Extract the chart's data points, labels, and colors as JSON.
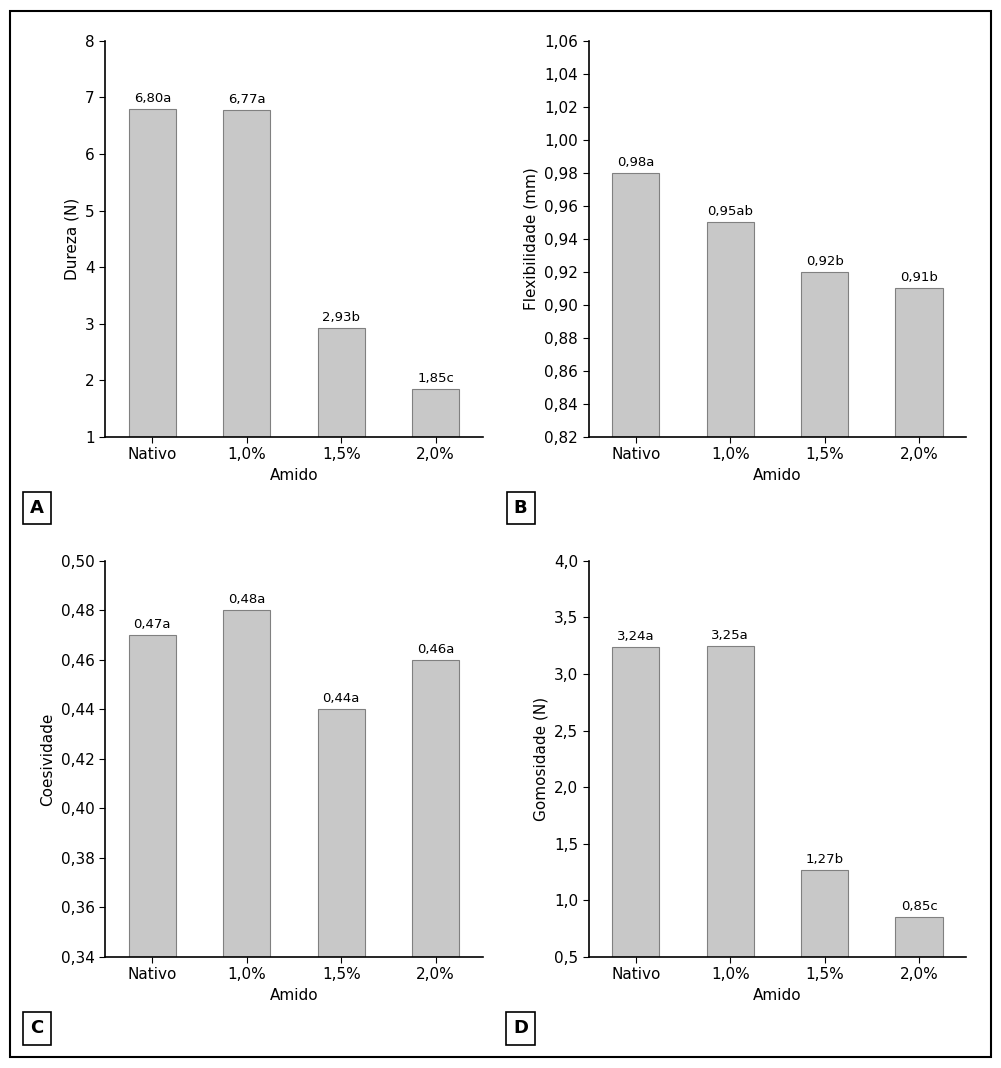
{
  "categories": [
    "Nativo",
    "1,0%",
    "1,5%",
    "2,0%"
  ],
  "panels": [
    {
      "label": "A",
      "ylabel": "Dureza (N)",
      "values": [
        6.8,
        6.77,
        2.93,
        1.85
      ],
      "annotations": [
        "6,80a",
        "6,77a",
        "2,93b",
        "1,85c"
      ],
      "ylim": [
        1,
        8
      ],
      "yticks": [
        1,
        2,
        3,
        4,
        5,
        6,
        7,
        8
      ],
      "ytick_labels": [
        "1",
        "2",
        "3",
        "4",
        "5",
        "6",
        "7",
        "8"
      ]
    },
    {
      "label": "B",
      "ylabel": "Flexibilidade (mm)",
      "values": [
        0.98,
        0.95,
        0.92,
        0.91
      ],
      "annotations": [
        "0,98a",
        "0,95ab",
        "0,92b",
        "0,91b"
      ],
      "ylim": [
        0.82,
        1.06
      ],
      "yticks": [
        0.82,
        0.84,
        0.86,
        0.88,
        0.9,
        0.92,
        0.94,
        0.96,
        0.98,
        1.0,
        1.02,
        1.04,
        1.06
      ],
      "ytick_labels": [
        "0,82",
        "0,84",
        "0,86",
        "0,88",
        "0,90",
        "0,92",
        "0,94",
        "0,96",
        "0,98",
        "1,00",
        "1,02",
        "1,04",
        "1,06"
      ]
    },
    {
      "label": "C",
      "ylabel": "Coesividade",
      "values": [
        0.47,
        0.48,
        0.44,
        0.46
      ],
      "annotations": [
        "0,47a",
        "0,48a",
        "0,44a",
        "0,46a"
      ],
      "ylim": [
        0.34,
        0.5
      ],
      "yticks": [
        0.34,
        0.36,
        0.38,
        0.4,
        0.42,
        0.44,
        0.46,
        0.48,
        0.5
      ],
      "ytick_labels": [
        "0,34",
        "0,36",
        "0,38",
        "0,40",
        "0,42",
        "0,44",
        "0,46",
        "0,48",
        "0,50"
      ]
    },
    {
      "label": "D",
      "ylabel": "Gomosidade (N)",
      "values": [
        3.24,
        3.25,
        1.27,
        0.85
      ],
      "annotations": [
        "3,24a",
        "3,25a",
        "1,27b",
        "0,85c"
      ],
      "ylim": [
        0.5,
        4.0
      ],
      "yticks": [
        0.5,
        1.0,
        1.5,
        2.0,
        2.5,
        3.0,
        3.5,
        4.0
      ],
      "ytick_labels": [
        "0,5",
        "1,0",
        "1,5",
        "2,0",
        "2,5",
        "3,0",
        "3,5",
        "4,0"
      ]
    }
  ],
  "bar_color": "#c8c8c8",
  "bar_edge_color": "#808080",
  "xlabel": "Amido",
  "bar_width": 0.5,
  "font_size": 11,
  "annotation_fontsize": 9.5,
  "figure_width": 10.01,
  "figure_height": 10.68,
  "dpi": 100
}
